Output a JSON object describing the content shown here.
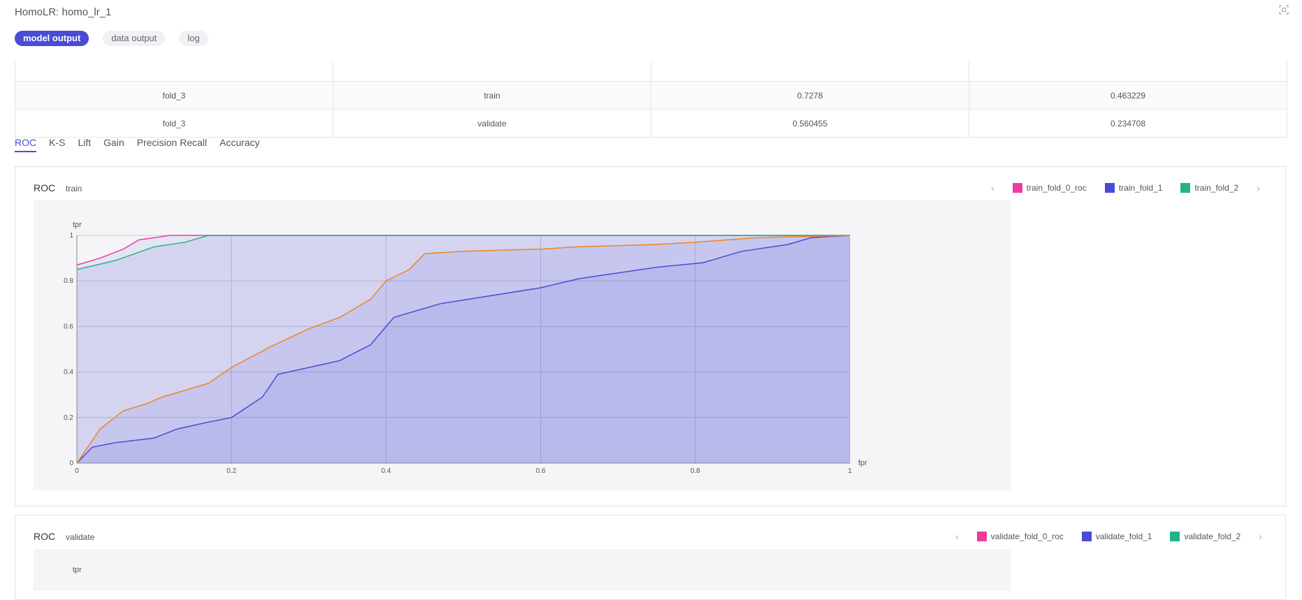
{
  "header": {
    "title": "HomoLR: homo_lr_1",
    "tabs": [
      "model output",
      "data output",
      "log"
    ],
    "expand_icon": "expand-icon"
  },
  "table": {
    "rows": [
      [
        "fold_3",
        "train",
        "0.7278",
        "0.463229"
      ],
      [
        "fold_3",
        "validate",
        "0.560455",
        "0.234708"
      ]
    ]
  },
  "metric_tabs": [
    "ROC",
    "K-S",
    "Lift",
    "Gain",
    "Precision Recall",
    "Accuracy"
  ],
  "colors": {
    "accent": "#4a4bd6",
    "pink": "#ef3aa0",
    "blue": "#4a4bd6",
    "green": "#23b38a",
    "orange": "#f0841f"
  },
  "panels": {
    "train": {
      "title": "ROC",
      "subtitle": "train",
      "legend": [
        "train_fold_0_roc",
        "train_fold_1",
        "train_fold_2"
      ]
    },
    "validate": {
      "title": "ROC",
      "subtitle": "validate",
      "legend": [
        "validate_fold_0_roc",
        "validate_fold_1",
        "validate_fold_2"
      ],
      "ylabel": "tpr"
    }
  },
  "chart_data": {
    "type": "area",
    "title": "ROC",
    "subtitle": "train",
    "xlabel": "fpr",
    "ylabel": "tpr",
    "xlim": [
      0,
      1
    ],
    "ylim": [
      0,
      1
    ],
    "x_ticks": [
      "0",
      "0.2",
      "0.4",
      "0.6",
      "0.8",
      "1"
    ],
    "y_ticks": [
      "0",
      "0.2",
      "0.4",
      "0.6",
      "0.8",
      "1"
    ],
    "grid": true,
    "legend_position": "top-right",
    "series": [
      {
        "name": "train_fold_0_roc",
        "color": "#ef3aa0",
        "points": [
          [
            0,
            0.87
          ],
          [
            0.03,
            0.9
          ],
          [
            0.06,
            0.94
          ],
          [
            0.08,
            0.98
          ],
          [
            0.1,
            0.99
          ],
          [
            0.12,
            1.0
          ],
          [
            1,
            1.0
          ]
        ]
      },
      {
        "name": "train_fold_1",
        "color": "#4a4bd6",
        "points": [
          [
            0,
            0
          ],
          [
            0.02,
            0.07
          ],
          [
            0.05,
            0.09
          ],
          [
            0.1,
            0.11
          ],
          [
            0.13,
            0.15
          ],
          [
            0.17,
            0.18
          ],
          [
            0.2,
            0.2
          ],
          [
            0.24,
            0.29
          ],
          [
            0.26,
            0.39
          ],
          [
            0.3,
            0.42
          ],
          [
            0.34,
            0.45
          ],
          [
            0.38,
            0.52
          ],
          [
            0.41,
            0.64
          ],
          [
            0.47,
            0.7
          ],
          [
            0.6,
            0.77
          ],
          [
            0.65,
            0.81
          ],
          [
            0.75,
            0.86
          ],
          [
            0.81,
            0.88
          ],
          [
            0.86,
            0.93
          ],
          [
            0.92,
            0.96
          ],
          [
            0.95,
            0.99
          ],
          [
            1,
            1.0
          ]
        ]
      },
      {
        "name": "train_fold_2",
        "color": "#23b38a",
        "points": [
          [
            0,
            0.85
          ],
          [
            0.05,
            0.89
          ],
          [
            0.1,
            0.95
          ],
          [
            0.14,
            0.97
          ],
          [
            0.17,
            1.0
          ],
          [
            1,
            1.0
          ]
        ]
      },
      {
        "name": "",
        "color": "#f0841f",
        "points": [
          [
            0,
            0
          ],
          [
            0.03,
            0.15
          ],
          [
            0.06,
            0.23
          ],
          [
            0.09,
            0.26
          ],
          [
            0.11,
            0.29
          ],
          [
            0.14,
            0.32
          ],
          [
            0.17,
            0.35
          ],
          [
            0.2,
            0.42
          ],
          [
            0.25,
            0.51
          ],
          [
            0.3,
            0.59
          ],
          [
            0.34,
            0.64
          ],
          [
            0.38,
            0.72
          ],
          [
            0.4,
            0.8
          ],
          [
            0.43,
            0.85
          ],
          [
            0.45,
            0.92
          ],
          [
            0.5,
            0.93
          ],
          [
            0.6,
            0.94
          ],
          [
            0.65,
            0.95
          ],
          [
            0.75,
            0.96
          ],
          [
            0.8,
            0.97
          ],
          [
            0.88,
            0.99
          ],
          [
            1,
            1.0
          ]
        ]
      }
    ]
  }
}
